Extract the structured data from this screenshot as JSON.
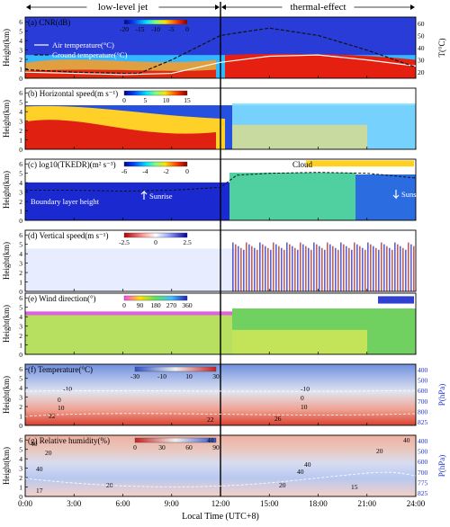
{
  "chart_data": {
    "type": "heatmap",
    "regimes": [
      {
        "label": "low-level jet",
        "x_range": [
          0,
          12
        ]
      },
      {
        "label": "thermal-effect",
        "x_range": [
          12,
          24
        ]
      }
    ],
    "xlabel": "Local Time (UTC+8)",
    "x_ticks": [
      "0:00",
      "3:00",
      "6:00",
      "9:00",
      "12:00",
      "15:00",
      "18:00",
      "21:00",
      "24:00"
    ],
    "xlim": [
      0,
      24
    ],
    "ylabel": "Height(km)",
    "ylim": [
      0,
      6.5
    ],
    "y_ticks": [
      "0",
      "1",
      "2",
      "3",
      "4",
      "5",
      "6"
    ],
    "panels": [
      {
        "title": "(a) CNR(dB)",
        "colorbar_ticks": [
          "-20",
          "-15",
          "-10",
          "-5",
          "0"
        ],
        "right_axis": {
          "label": "T(°C)",
          "ticks": [
            "20",
            "30",
            "40",
            "50",
            "60"
          ],
          "range": [
            15,
            65
          ]
        },
        "legend": [
          "Air temperature(°C)",
          "Ground temperature(°C)"
        ],
        "series": [
          {
            "name": "Air temperature(°C)",
            "x": [
              0,
              3,
              6,
              9,
              12,
              15,
              18,
              21,
              24
            ],
            "values": [
              20,
              19,
              18,
              19,
              28,
              33,
              34,
              30,
              25
            ]
          },
          {
            "name": "Ground temperature(°C)",
            "x": [
              0,
              3,
              6,
              7,
              9,
              12,
              15,
              18,
              21,
              24
            ],
            "values": [
              22,
              20,
              19,
              19,
              30,
              50,
              56,
              50,
              38,
              24
            ]
          }
        ]
      },
      {
        "title": "(b) Horizontal speed(m s⁻¹)",
        "colorbar_ticks": [
          "0",
          "5",
          "10",
          "15"
        ]
      },
      {
        "title": "(c) log10(TKEDR)(m² s⁻³)",
        "colorbar_ticks": [
          "-6",
          "-4",
          "-2",
          "0"
        ],
        "annotations": [
          "Cloud",
          "Boundary layer height",
          "Sunrise",
          "Sunset"
        ],
        "boundary_layer_height": {
          "x": [
            0,
            3,
            6,
            9,
            12,
            13,
            15,
            18,
            21,
            24
          ],
          "values": [
            3.2,
            3.2,
            3.1,
            3.2,
            3.5,
            4.8,
            5.0,
            5.1,
            5.0,
            4.5
          ]
        }
      },
      {
        "title": "(d) Vertical speed(m s⁻¹)",
        "colorbar_ticks": [
          "-2.5",
          "0",
          "2.5"
        ]
      },
      {
        "title": "(e) Wind direction(°)",
        "colorbar_ticks": [
          "0",
          "90",
          "180",
          "270",
          "360"
        ]
      },
      {
        "title": "(f) Temperature(°C)",
        "colorbar_ticks": [
          "-30",
          "-10",
          "10",
          "30"
        ],
        "right_axis": {
          "label": "P(hPa)",
          "ticks": [
            "400",
            "500",
            "600",
            "700",
            "800",
            "825"
          ]
        },
        "contour_labels": [
          "-10",
          "0",
          "10",
          "22",
          "22",
          "-10",
          "0",
          "10",
          "26"
        ]
      },
      {
        "title": "(g) Relative humidity(%)",
        "colorbar_ticks": [
          "0",
          "30",
          "60",
          "90"
        ],
        "right_axis": {
          "label": "P(hPa)",
          "ticks": [
            "400",
            "500",
            "600",
            "700",
            "775",
            "825"
          ]
        },
        "contour_labels": [
          "40",
          "40",
          "40",
          "20",
          "40",
          "40",
          "20",
          "20",
          "17",
          "15",
          "40",
          "20"
        ]
      }
    ]
  }
}
